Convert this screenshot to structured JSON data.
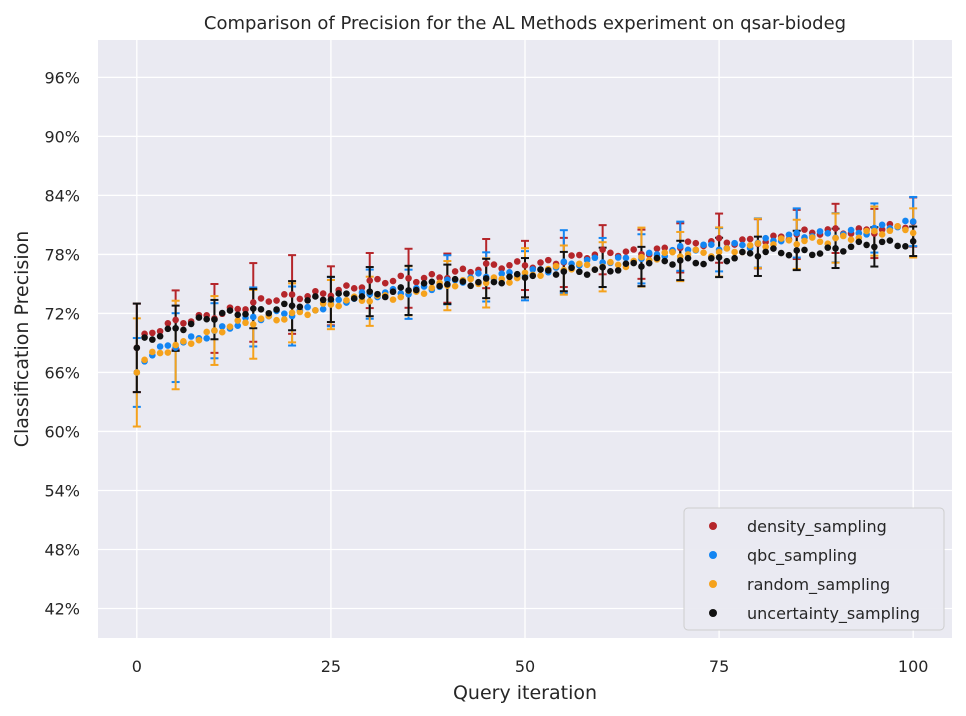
{
  "chart_data": {
    "type": "scatter",
    "title": "Comparison of Precision for the AL Methods experiment on qsar-biodeg",
    "xlabel": "Query iteration",
    "ylabel": "Classification Precision",
    "xlim": [
      -5,
      105
    ],
    "ylim": [
      39.0,
      99.8
    ],
    "xticks": [
      0,
      25,
      50,
      75,
      100
    ],
    "yticks": [
      42,
      48,
      54,
      60,
      66,
      72,
      78,
      84,
      90,
      96
    ],
    "ytick_format": "percent",
    "grid": true,
    "legend_position": "lower-right",
    "error_bar_every": 5,
    "series": [
      {
        "name": "density_sampling",
        "color": "#b5262b",
        "start": 68.5,
        "end": 81.0,
        "error": [
          4.5,
          3.0,
          3.5,
          4.0,
          4.0,
          3.0,
          2.8,
          3.0,
          2.5,
          2.5,
          2.5,
          2.5,
          2.5,
          2.5,
          2.5,
          2.5,
          2.5,
          2.5,
          2.5,
          2.5,
          2.5
        ]
      },
      {
        "name": "qbc_sampling",
        "color": "#1385f2",
        "start": 66.0,
        "end": 81.0,
        "error": [
          3.5,
          3.5,
          2.8,
          3.0,
          3.0,
          2.5,
          2.5,
          2.5,
          2.5,
          2.5,
          2.5,
          3.2,
          2.5,
          2.5,
          2.5,
          2.2,
          2.5,
          2.5,
          2.5,
          2.5,
          2.5
        ]
      },
      {
        "name": "random_sampling",
        "color": "#f5a21c",
        "start": 66.0,
        "end": 80.5,
        "error": [
          5.5,
          4.5,
          3.5,
          3.5,
          3.0,
          2.5,
          2.5,
          2.5,
          2.5,
          2.5,
          2.5,
          2.5,
          2.5,
          3.0,
          2.5,
          2.5,
          2.5,
          2.5,
          2.5,
          2.5,
          2.5
        ]
      },
      {
        "name": "uncertainty_sampling",
        "color": "#111111",
        "start": 68.5,
        "end": 79.2,
        "error": [
          4.5,
          2.3,
          2.0,
          2.0,
          2.5,
          2.3,
          2.5,
          2.5,
          2.0,
          2.0,
          2.0,
          2.0,
          2.0,
          2.0,
          2.0,
          2.0,
          2.0,
          2.0,
          2.0,
          2.0,
          1.5
        ]
      }
    ]
  }
}
